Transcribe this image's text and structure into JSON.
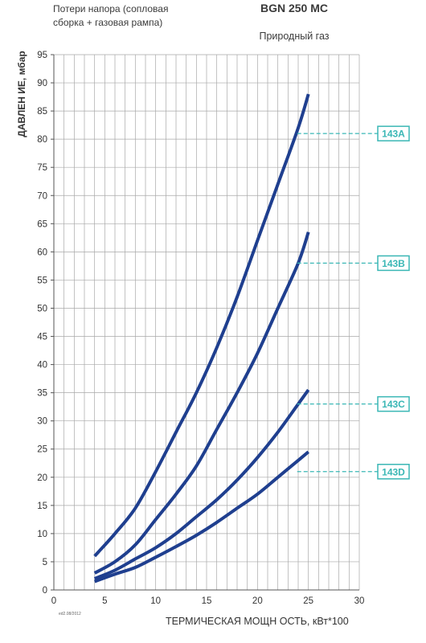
{
  "header": {
    "subtitle_line1": "Потери напора (сопловая",
    "subtitle_line2": "сборка + газовая рампа)",
    "title": "BGN 250 MC",
    "gas_type": "Природный газ"
  },
  "footer": {
    "edition": "ed2.08/2012"
  },
  "chart_data": {
    "type": "line",
    "title": "BGN 250 MC",
    "subtitle": "Природный газ",
    "xlabel": "ТЕРМИЧЕСКАЯ МОЩН ОСТЬ, кВт*100",
    "ylabel": "ДАВЛЕН ИЕ, мбар",
    "xlim": [
      0,
      30
    ],
    "ylim": [
      0,
      95
    ],
    "x_ticks": [
      0,
      5,
      10,
      15,
      20,
      25,
      30
    ],
    "y_ticks": [
      0,
      5,
      10,
      15,
      20,
      25,
      30,
      35,
      40,
      45,
      50,
      55,
      60,
      65,
      70,
      75,
      80,
      85,
      90,
      95
    ],
    "grid": true,
    "x_minor_step": 1,
    "legend_placement": "right, labels at curve ends",
    "line_color": "#1f3f8f",
    "label_color": "#3ab7b5",
    "series": [
      {
        "name": "143A",
        "label_y": 81,
        "x": [
          4,
          6,
          8,
          10,
          12,
          14,
          16,
          18,
          20,
          22,
          24,
          25
        ],
        "y": [
          6,
          10,
          14.5,
          21,
          28,
          35,
          43,
          52,
          62,
          72,
          82,
          88
        ]
      },
      {
        "name": "143B",
        "label_y": 58,
        "x": [
          4,
          6,
          8,
          10,
          12,
          14,
          16,
          18,
          20,
          22,
          24,
          25
        ],
        "y": [
          3,
          5,
          8,
          12.5,
          17,
          22,
          28.5,
          35,
          42,
          50,
          58,
          63.5
        ]
      },
      {
        "name": "143C",
        "label_y": 33,
        "x": [
          4,
          6,
          8,
          10,
          12,
          14,
          16,
          18,
          20,
          22,
          24,
          25
        ],
        "y": [
          2,
          3.5,
          5.5,
          7.5,
          10,
          13,
          16,
          19.5,
          23.5,
          28,
          33,
          35.5
        ]
      },
      {
        "name": "143D",
        "label_y": 21,
        "x": [
          4,
          6,
          8,
          10,
          12,
          14,
          16,
          18,
          20,
          22,
          24,
          25
        ],
        "y": [
          1.5,
          2.8,
          4,
          5.8,
          7.7,
          9.7,
          12,
          14.5,
          17,
          20,
          23,
          24.5
        ]
      }
    ]
  }
}
